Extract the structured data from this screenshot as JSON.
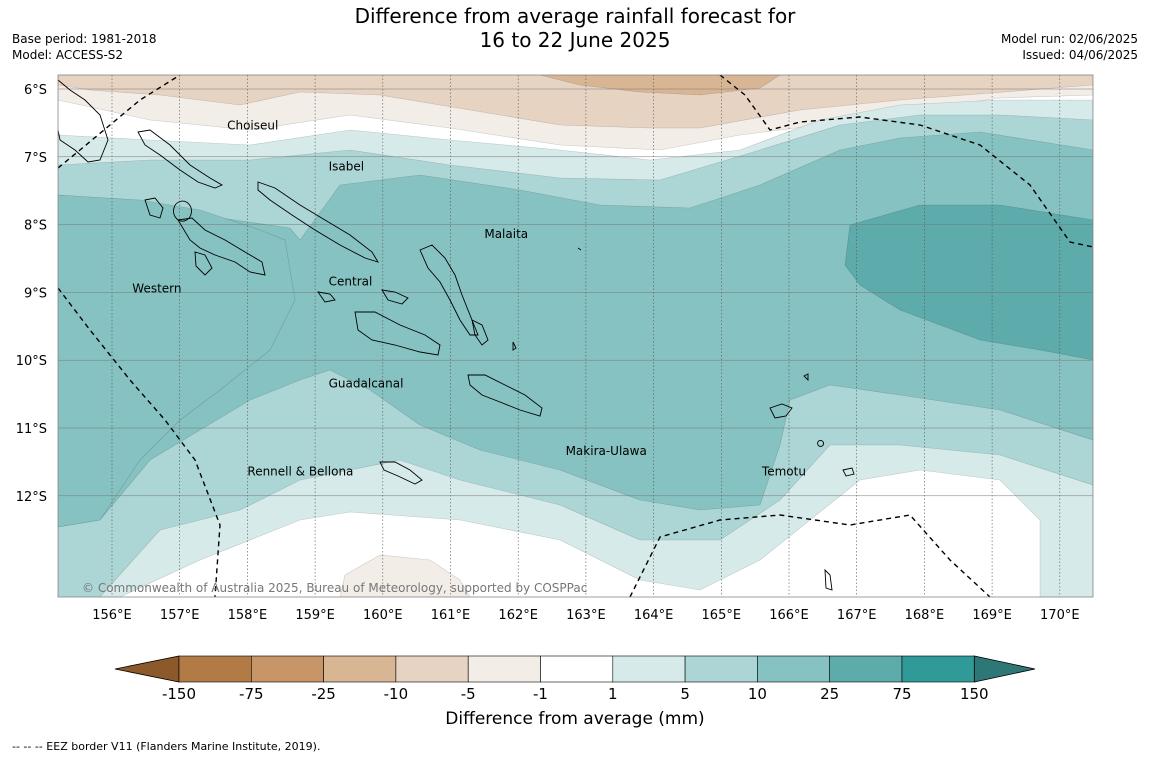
{
  "title": {
    "line1": "Difference from average rainfall forecast for",
    "line2": "16 to 22 June 2025"
  },
  "meta_left": {
    "base_period": "Base period: 1981-2018",
    "model": "Model: ACCESS-S2"
  },
  "meta_right": {
    "model_run": "Model run: 02/06/2025",
    "issued": "Issued: 04/06/2025"
  },
  "map": {
    "lat_labels": [
      "6°S",
      "7°S",
      "8°S",
      "9°S",
      "10°S",
      "11°S",
      "12°S"
    ],
    "lon_labels": [
      "156°E",
      "157°E",
      "158°E",
      "159°E",
      "160°E",
      "161°E",
      "162°E",
      "163°E",
      "164°E",
      "165°E",
      "166°E",
      "167°E",
      "168°E",
      "169°E",
      "170°E"
    ],
    "places": [
      {
        "name": "Choiseul",
        "lon": 157.7,
        "lat": -6.6
      },
      {
        "name": "Isabel",
        "lon": 159.2,
        "lat": -7.2
      },
      {
        "name": "Malaita",
        "lon": 161.5,
        "lat": -8.2
      },
      {
        "name": "Western",
        "lon": 156.3,
        "lat": -9.0
      },
      {
        "name": "Central",
        "lon": 159.2,
        "lat": -8.9
      },
      {
        "name": "Guadalcanal",
        "lon": 159.2,
        "lat": -10.4
      },
      {
        "name": "Makira-Ulawa",
        "lon": 162.7,
        "lat": -11.4
      },
      {
        "name": "Rennell & Bellona",
        "lon": 158.0,
        "lat": -11.7
      },
      {
        "name": "Temotu",
        "lon": 165.6,
        "lat": -11.7
      }
    ],
    "copyright": "© Commonwealth of Australia 2025, Bureau of Meteorology, supported by COSPPac",
    "colors": {
      "brown_dark": "#b27a44",
      "brown_mid": "#c79568",
      "brown_light": "#d8b593",
      "tan": "#e6d3c2",
      "cream": "#f3ede8",
      "white": "#ffffff",
      "teal_1": "#d6eaea",
      "teal_2": "#acd6d5",
      "teal_3": "#86c2c1",
      "teal_4": "#5dabab",
      "teal_5": "#309a99"
    }
  },
  "colorbar": {
    "ticks": [
      "-150",
      "-75",
      "-25",
      "-10",
      "-5",
      "-1",
      "1",
      "5",
      "10",
      "25",
      "75",
      "150"
    ],
    "colors": [
      "#b27a44",
      "#c79568",
      "#d8b593",
      "#e6d3c2",
      "#f3ede8",
      "#ffffff",
      "#d6eaea",
      "#acd6d5",
      "#86c2c1",
      "#5dabab",
      "#309a99"
    ],
    "left_extend_color": "#8c5a2a",
    "right_extend_color": "#2d7776",
    "title": "Difference from average (mm)"
  },
  "footnote": "--  --  -- EEZ border V11 (Flanders Marine Institute, 2019)."
}
